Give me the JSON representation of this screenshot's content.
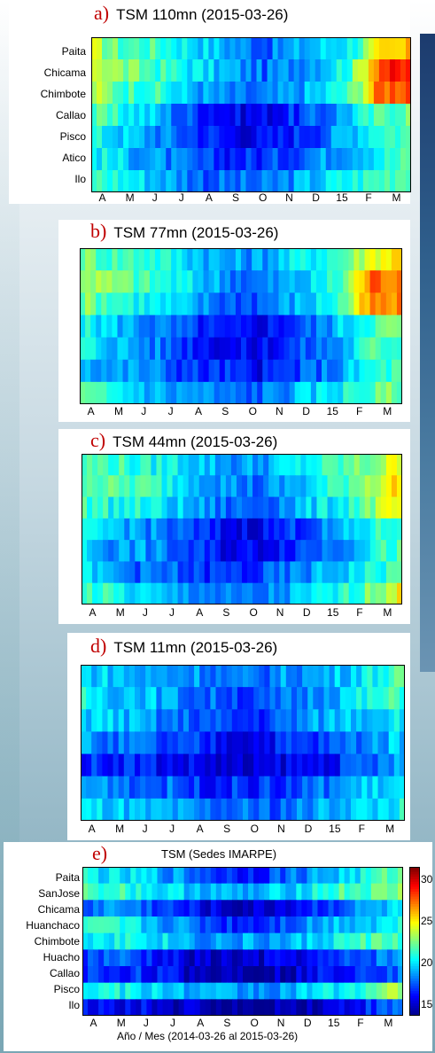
{
  "colors": {
    "colormap": [
      "#00008f",
      "#0000ff",
      "#0080ff",
      "#00ffff",
      "#80ff80",
      "#ffff00",
      "#ff8000",
      "#ff0000",
      "#800000"
    ]
  },
  "panels": [
    {
      "letter": "a)",
      "title": "TSM 110mn (2015-03-26)",
      "rows": [
        "Paita",
        "Chicama",
        "Chimbote",
        "Callao",
        "Pisco",
        "Atico",
        "Ilo"
      ]
    },
    {
      "letter": "b)",
      "title": "TSM 77mn (2015-03-26)",
      "rows": []
    },
    {
      "letter": "c)",
      "title": "TSM 44mn (2015-03-26)",
      "rows": []
    },
    {
      "letter": "d)",
      "title": "TSM 11mn (2015-03-26)",
      "rows": []
    },
    {
      "letter": "e)",
      "title": "TSM (Sedes IMARPE)",
      "rows": [
        "Paita",
        "SanJose",
        "Chicama",
        "Huanchaco",
        "Chimbote",
        "Huacho",
        "Callao",
        "Pisco",
        "Ilo"
      ],
      "xlabel": "Año / Mes (2014-03-26 al 2015-03-26)"
    }
  ],
  "months": [
    "A",
    "M",
    "J",
    "J",
    "A",
    "S",
    "O",
    "N",
    "D",
    "15",
    "F",
    "M"
  ],
  "chart_data": [
    {
      "type": "heatmap",
      "title": "TSM 110mn (2015-03-26)",
      "x_ticks": [
        "A",
        "M",
        "J",
        "J",
        "A",
        "S",
        "O",
        "N",
        "D",
        "15",
        "F",
        "M"
      ],
      "y_categories": [
        "Paita",
        "Chicama",
        "Chimbote",
        "Callao",
        "Pisco",
        "Atico",
        "Ilo"
      ],
      "colorbar_range": [
        13,
        31
      ],
      "row_profiles": [
        [
          23,
          21,
          21,
          20,
          19,
          18,
          17,
          18,
          19,
          20,
          24,
          25
        ],
        [
          24,
          22,
          21,
          20,
          19,
          18,
          17,
          18,
          19,
          21,
          28,
          28
        ],
        [
          23,
          21,
          21,
          19,
          18,
          17,
          17,
          18,
          19,
          21,
          27,
          28
        ],
        [
          21,
          20,
          19,
          17,
          16,
          15,
          15,
          16,
          17,
          19,
          21,
          22
        ],
        [
          20,
          19,
          18,
          17,
          16,
          15,
          15,
          16,
          17,
          19,
          21,
          21
        ],
        [
          20,
          19,
          18,
          17,
          16,
          16,
          16,
          17,
          18,
          19,
          20,
          21
        ],
        [
          21,
          20,
          19,
          18,
          17,
          17,
          17,
          18,
          19,
          20,
          21,
          22
        ]
      ]
    },
    {
      "type": "heatmap",
      "title": "TSM 77mn (2015-03-26)",
      "x_ticks": [
        "A",
        "M",
        "J",
        "J",
        "A",
        "S",
        "O",
        "N",
        "D",
        "15",
        "F",
        "M"
      ],
      "colorbar_range": [
        13,
        31
      ],
      "row_profiles": [
        [
          22,
          21,
          21,
          20,
          19,
          18,
          18,
          19,
          20,
          21,
          24,
          25
        ],
        [
          23,
          22,
          21,
          20,
          19,
          18,
          17,
          18,
          19,
          21,
          27,
          27
        ],
        [
          22,
          21,
          20,
          19,
          18,
          17,
          17,
          18,
          19,
          21,
          26,
          26
        ],
        [
          20,
          19,
          18,
          17,
          16,
          15,
          15,
          16,
          17,
          19,
          21,
          22
        ],
        [
          20,
          19,
          18,
          17,
          16,
          15,
          15,
          16,
          17,
          18,
          21,
          21
        ],
        [
          19,
          18,
          18,
          17,
          16,
          16,
          15,
          16,
          17,
          18,
          20,
          21
        ],
        [
          21,
          20,
          19,
          18,
          18,
          17,
          17,
          18,
          19,
          20,
          21,
          22
        ]
      ]
    },
    {
      "type": "heatmap",
      "title": "TSM 44mn (2015-03-26)",
      "x_ticks": [
        "A",
        "M",
        "J",
        "J",
        "A",
        "S",
        "O",
        "N",
        "D",
        "15",
        "F",
        "M"
      ],
      "colorbar_range": [
        13,
        31
      ],
      "row_profiles": [
        [
          21,
          21,
          20,
          20,
          19,
          18,
          18,
          19,
          20,
          21,
          22,
          24
        ],
        [
          22,
          21,
          21,
          20,
          19,
          18,
          17,
          18,
          19,
          21,
          23,
          25
        ],
        [
          21,
          20,
          20,
          19,
          18,
          17,
          17,
          18,
          19,
          20,
          22,
          24
        ],
        [
          19,
          19,
          18,
          17,
          16,
          15,
          15,
          16,
          17,
          18,
          20,
          21
        ],
        [
          19,
          18,
          18,
          17,
          16,
          15,
          15,
          16,
          17,
          18,
          20,
          21
        ],
        [
          19,
          18,
          17,
          17,
          16,
          16,
          16,
          17,
          18,
          19,
          20,
          21
        ],
        [
          21,
          20,
          19,
          18,
          18,
          17,
          17,
          18,
          19,
          20,
          22,
          24
        ]
      ]
    },
    {
      "type": "heatmap",
      "title": "TSM 11mn (2015-03-26)",
      "x_ticks": [
        "A",
        "M",
        "J",
        "J",
        "A",
        "S",
        "O",
        "N",
        "D",
        "15",
        "F",
        "M"
      ],
      "colorbar_range": [
        13,
        31
      ],
      "row_profiles": [
        [
          19,
          19,
          18,
          18,
          18,
          17,
          17,
          18,
          18,
          19,
          20,
          21
        ],
        [
          20,
          19,
          19,
          18,
          17,
          17,
          16,
          17,
          18,
          19,
          20,
          21
        ],
        [
          19,
          19,
          18,
          17,
          17,
          16,
          16,
          17,
          18,
          19,
          19,
          20
        ],
        [
          18,
          17,
          17,
          16,
          16,
          15,
          15,
          16,
          16,
          17,
          18,
          19
        ],
        [
          16,
          16,
          16,
          15,
          15,
          14,
          14,
          15,
          15,
          16,
          17,
          18
        ],
        [
          18,
          18,
          17,
          17,
          16,
          16,
          16,
          16,
          17,
          18,
          19,
          19
        ],
        [
          19,
          19,
          18,
          18,
          17,
          17,
          17,
          17,
          18,
          19,
          19,
          20
        ]
      ]
    },
    {
      "type": "heatmap",
      "title": "TSM (Sedes IMARPE)",
      "x_ticks": [
        "A",
        "M",
        "J",
        "J",
        "A",
        "S",
        "O",
        "N",
        "D",
        "15",
        "F",
        "M"
      ],
      "y_categories": [
        "Paita",
        "SanJose",
        "Chicama",
        "Huanchaco",
        "Chimbote",
        "Huacho",
        "Callao",
        "Pisco",
        "Ilo"
      ],
      "xlabel": "Año / Mes (2014-03-26 al 2015-03-26)",
      "colorbar_ticks": [
        15,
        20,
        25,
        30
      ],
      "colorbar_range": [
        13,
        31
      ],
      "row_profiles": [
        [
          20,
          19,
          19,
          18,
          17,
          16,
          16,
          17,
          18,
          19,
          20,
          22
        ],
        [
          21,
          21,
          20,
          19,
          19,
          18,
          18,
          19,
          20,
          21,
          21,
          22
        ],
        [
          17,
          18,
          17,
          16,
          15,
          14,
          14,
          15,
          16,
          17,
          18,
          19
        ],
        [
          20,
          20,
          19,
          18,
          17,
          16,
          16,
          17,
          18,
          19,
          19,
          20
        ],
        [
          20,
          20,
          20,
          19,
          18,
          18,
          18,
          18,
          19,
          20,
          21,
          21
        ],
        [
          16,
          17,
          16,
          15,
          14,
          14,
          14,
          15,
          15,
          16,
          17,
          18
        ],
        [
          16,
          16,
          16,
          15,
          14,
          14,
          14,
          14,
          15,
          16,
          17,
          17
        ],
        [
          20,
          20,
          19,
          19,
          18,
          18,
          18,
          18,
          19,
          20,
          21,
          23
        ],
        [
          15,
          15,
          15,
          14,
          14,
          13,
          13,
          14,
          14,
          15,
          16,
          17
        ]
      ]
    }
  ]
}
